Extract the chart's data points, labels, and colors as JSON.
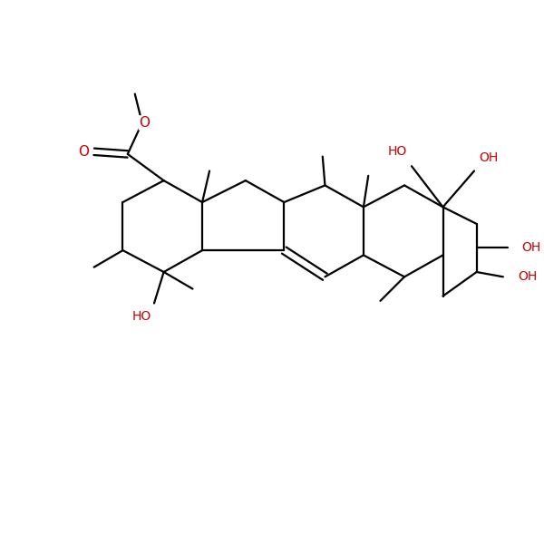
{
  "background": "#ffffff",
  "bond_color": "#000000",
  "bond_lw": 1.6,
  "red": "#cc0000",
  "figsize": [
    6.0,
    6.0
  ],
  "dpi": 100,
  "xlim": [
    -0.5,
    10.5
  ],
  "ylim": [
    -0.5,
    10.5
  ]
}
